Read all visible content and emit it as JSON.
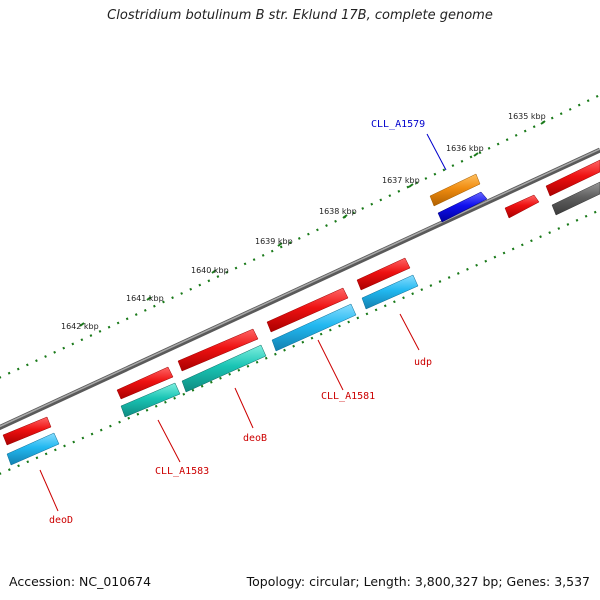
{
  "title": "Clostridium botulinum B str. Eklund 17B, complete genome",
  "footer": {
    "accession": "Accession: NC_010674",
    "topology": "Topology: circular; Length: 3,800,327 bp; Genes: 3,537"
  },
  "ticks": [
    {
      "label": "1635 kbp"
    },
    {
      "label": "1636 kbp"
    },
    {
      "label": "1637 kbp"
    },
    {
      "label": "1638 kbp"
    },
    {
      "label": "1639 kbp"
    },
    {
      "label": "1640 kbp"
    },
    {
      "label": "1641 kbp"
    },
    {
      "label": "1642 kbp"
    }
  ],
  "gene_labels": [
    {
      "text": "CLL_A1579",
      "color": "#0000cc"
    },
    {
      "text": "udp",
      "color": "#cc0000"
    },
    {
      "text": "CLL_A1581",
      "color": "#cc0000"
    },
    {
      "text": "deoB",
      "color": "#cc0000"
    },
    {
      "text": "CLL_A1583",
      "color": "#cc0000"
    },
    {
      "text": "deoD",
      "color": "#cc0000"
    }
  ],
  "colors": {
    "backbone": "#7a7a7a",
    "gene_red": "#ee1111",
    "gene_cyan_blue": "#22b8f0",
    "gene_teal": "#19c4b4",
    "gene_orange": "#f08c10",
    "gene_blue": "#1010ee",
    "gene_gray": "#606060",
    "tick_dots": "#1a7a1a"
  }
}
